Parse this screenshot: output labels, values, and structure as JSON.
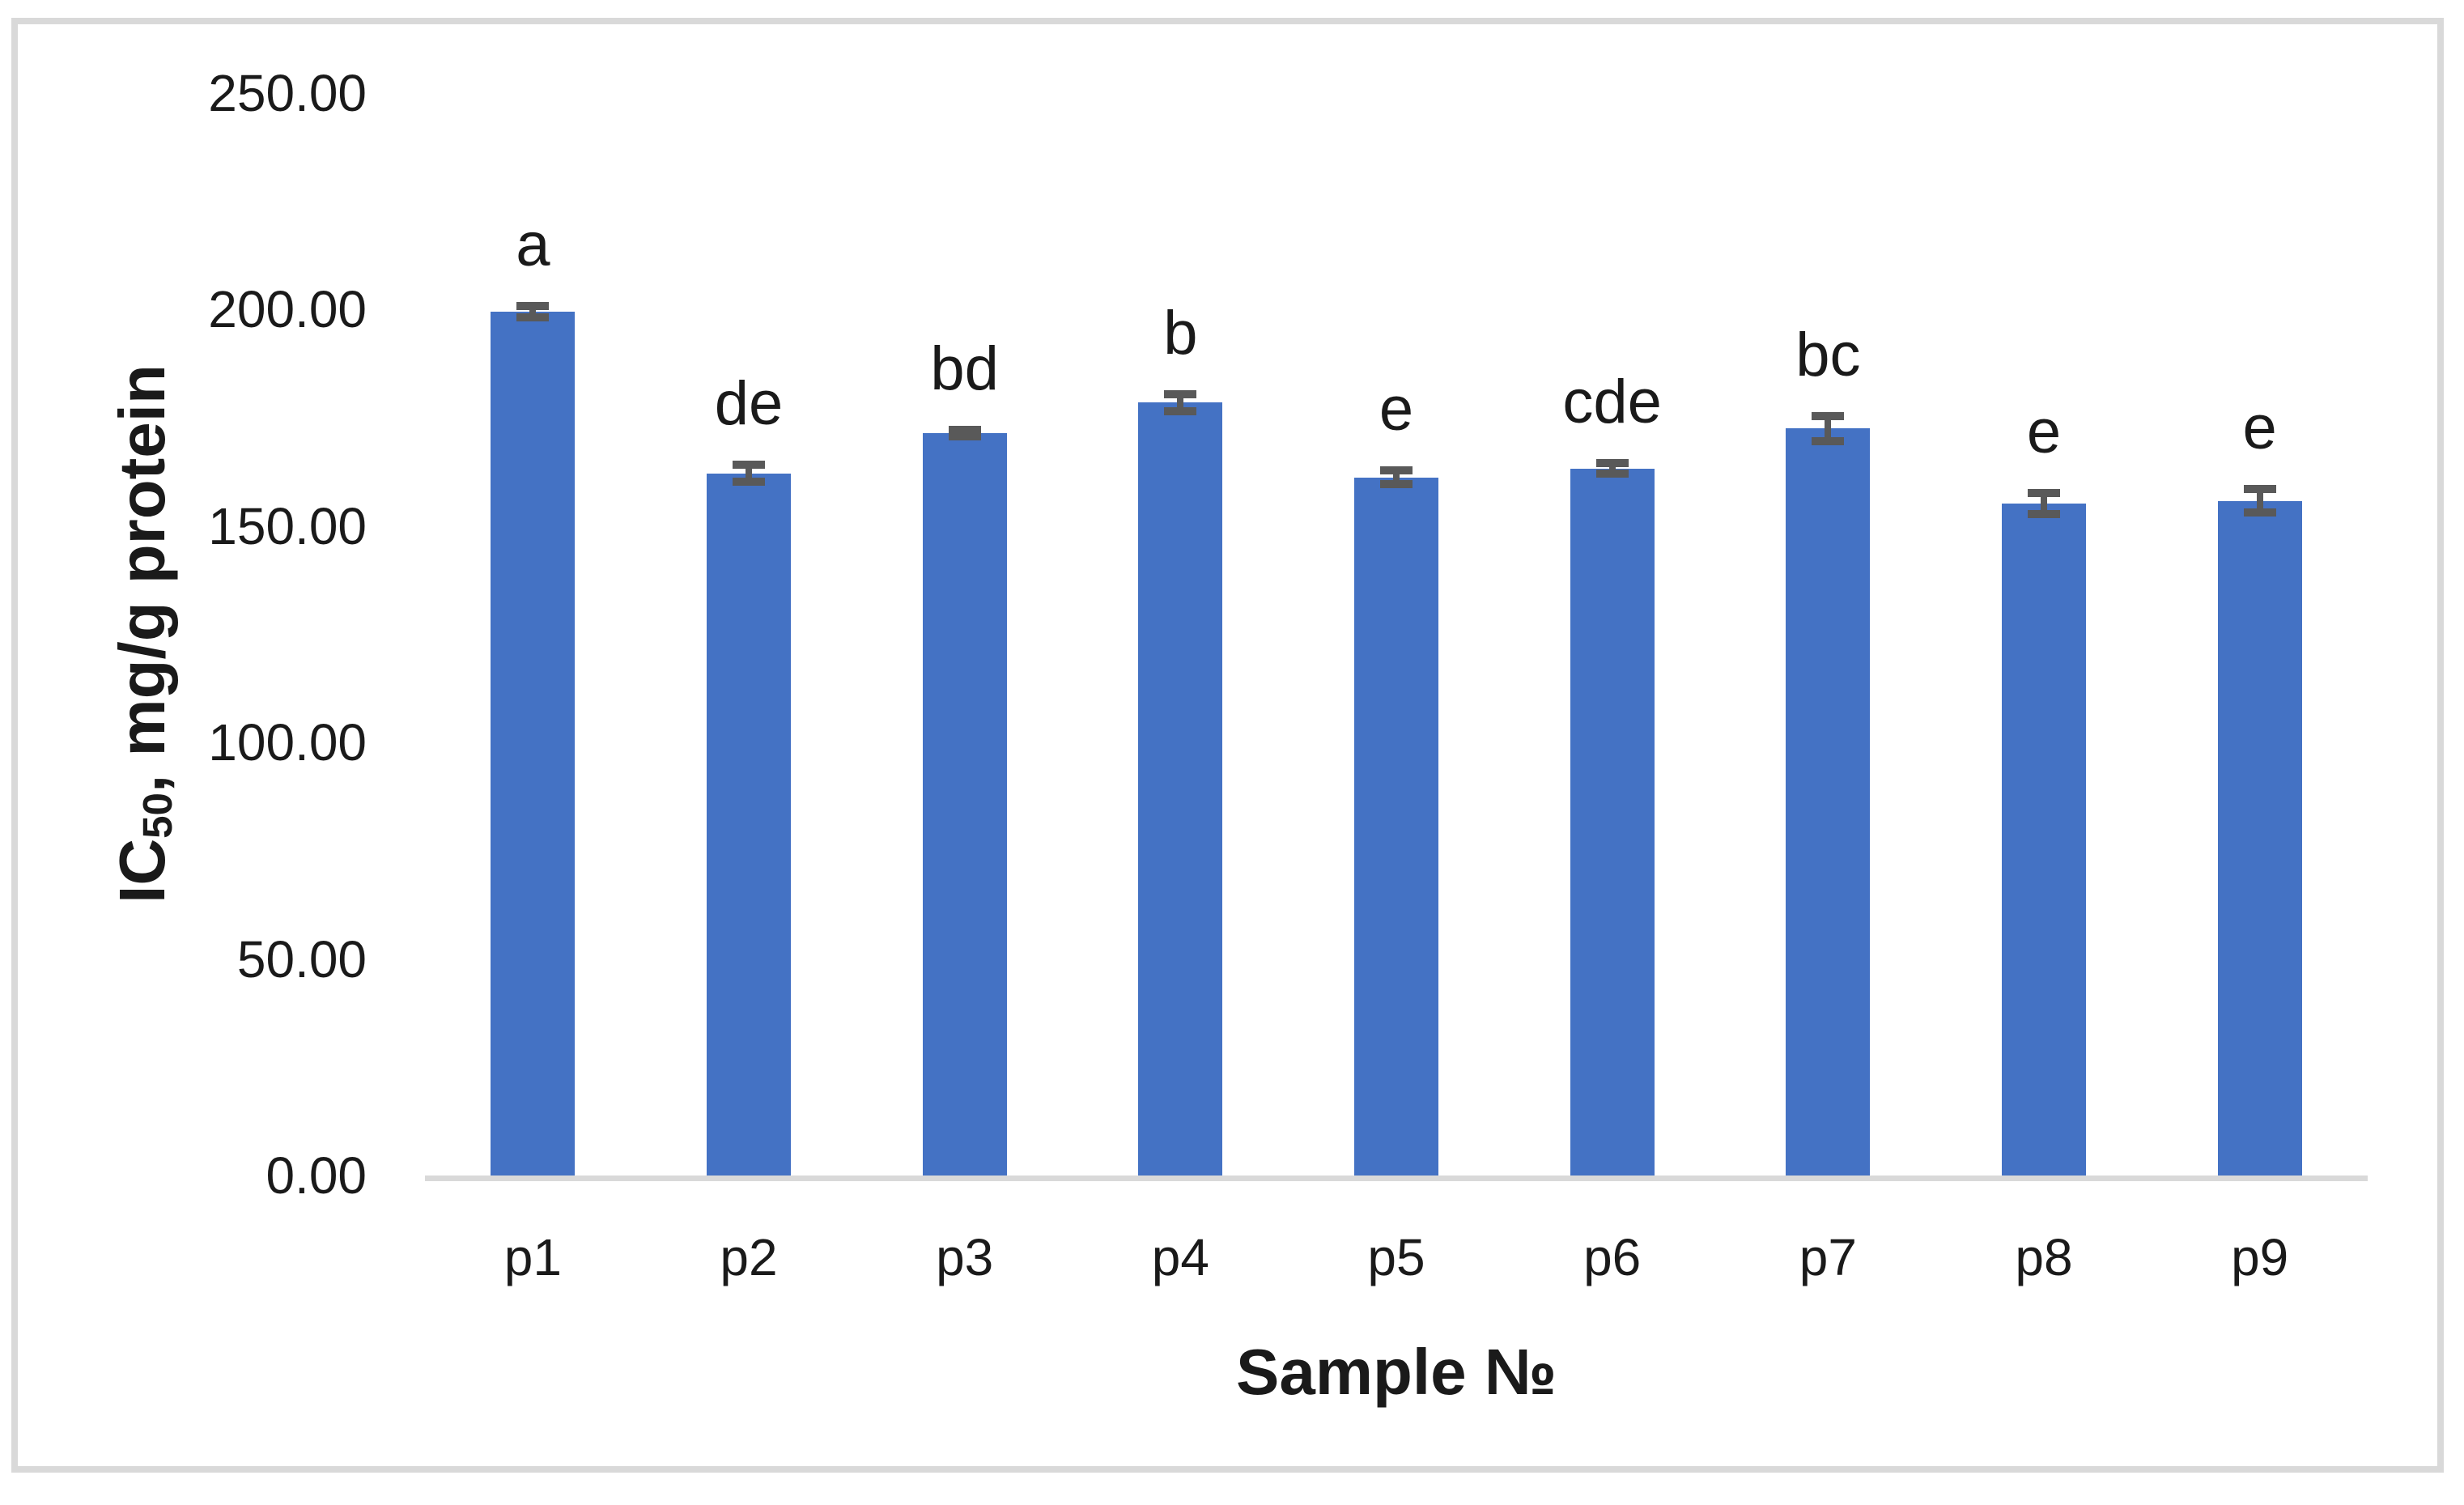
{
  "chart_data": {
    "type": "bar",
    "title": "",
    "categories": [
      "p1",
      "p2",
      "p3",
      "p4",
      "p5",
      "p6",
      "p7",
      "p8",
      "p9"
    ],
    "values": [
      199.5,
      162.2,
      171.5,
      178.5,
      161.2,
      163.3,
      172.5,
      155.2,
      155.8
    ],
    "error_bars": [
      1.3,
      2.0,
      0.8,
      1.9,
      1.6,
      1.2,
      2.9,
      2.4,
      2.7
    ],
    "significance_letters": [
      "a",
      "de",
      "bd",
      "b",
      "e",
      "cde",
      "bc",
      "e",
      "e"
    ],
    "xlabel": "Sample №",
    "ylabel_prefix": "IC",
    "ylabel_subscript": "50",
    "ylabel_suffix": ", mg/g protein",
    "ylim": [
      0,
      250
    ],
    "ytick_step": 50,
    "ytick_labels": [
      "0.00",
      "50.00",
      "100.00",
      "150.00",
      "200.00",
      "250.00"
    ],
    "grid": false,
    "legend_position": "none",
    "bar_color": "#4472C4",
    "error_bar_color": "#595959",
    "axis_line_color": "#D9D9D9",
    "border_color": "#D9D9D9",
    "text_color": "#1a1a1a"
  }
}
